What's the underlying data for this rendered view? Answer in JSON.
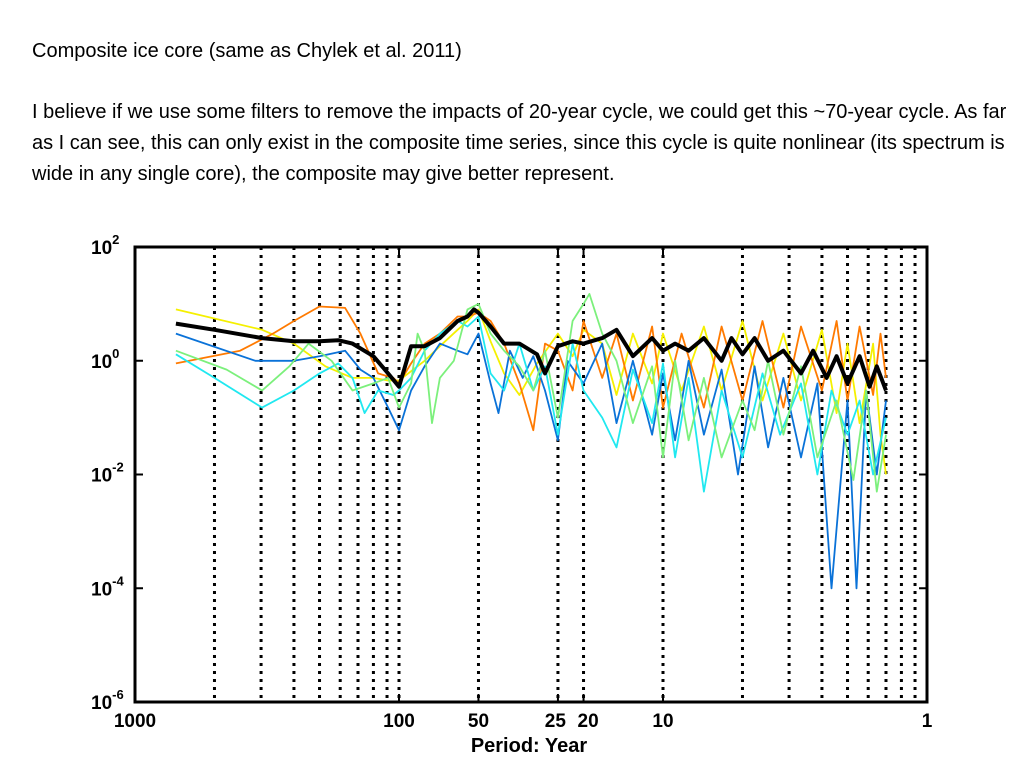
{
  "slide": {
    "heading": "Composite ice core (same as Chylek et al. 2011)",
    "body": "I believe if we use some filters to remove the impacts of 20-year cycle, we could get this ~70-year cycle. As far as I can see, this can only exist in the composite time series, since this cycle is quite nonlinear (its spectrum is wide in any single core), the composite may give better represent."
  },
  "chart_data": {
    "type": "line",
    "title": "",
    "xlabel": "Period: Year",
    "ylabel": "",
    "xscale": "log",
    "yscale": "log",
    "xlim": [
      1000,
      1
    ],
    "ylim": [
      1e-06,
      100
    ],
    "x_reversed": true,
    "x_ticks": [
      {
        "value": 1000,
        "label": "1000"
      },
      {
        "value": 100,
        "label": "100"
      },
      {
        "value": 50,
        "label": "50"
      },
      {
        "value": 25,
        "label": "25"
      },
      {
        "value": 20,
        "label": "20"
      },
      {
        "value": 10,
        "label": "10"
      },
      {
        "value": 1,
        "label": "1"
      }
    ],
    "y_ticks": [
      {
        "value": 100,
        "base": "10",
        "exp": "2"
      },
      {
        "value": 1,
        "base": "10",
        "exp": "0"
      },
      {
        "value": 0.01,
        "base": "10",
        "exp": "-2"
      },
      {
        "value": 0.0001,
        "base": "10",
        "exp": "-4"
      },
      {
        "value": 1e-06,
        "base": "10",
        "exp": "-6"
      }
    ],
    "vlines": {
      "style": "dotted",
      "color": "#000000",
      "x": [
        500,
        333,
        250,
        200,
        167,
        143,
        125,
        111,
        100,
        50,
        25,
        20,
        10,
        5,
        3.33,
        2.5,
        2,
        1.67,
        1.43,
        1.25,
        1.11
      ]
    },
    "grid": false,
    "legend": "none",
    "series": [
      {
        "color": "#f5f000",
        "points": [
          [
            700,
            8
          ],
          [
            330,
            3.5
          ],
          [
            250,
            2
          ],
          [
            190,
            0.8
          ],
          [
            150,
            0.5
          ],
          [
            125,
            0.5
          ],
          [
            110,
            0.45
          ],
          [
            100,
            0.45
          ],
          [
            80,
            1
          ],
          [
            70,
            1.8
          ],
          [
            60,
            3.5
          ],
          [
            55,
            5
          ],
          [
            50,
            8
          ],
          [
            45,
            2.2
          ],
          [
            40,
            0.6
          ],
          [
            35,
            0.25
          ],
          [
            30,
            0.9
          ],
          [
            25,
            3
          ],
          [
            22,
            1.2
          ],
          [
            20,
            3.5
          ],
          [
            17,
            2
          ],
          [
            15,
            0.25
          ],
          [
            13,
            3
          ],
          [
            11,
            0.4
          ],
          [
            10,
            3
          ],
          [
            8.5,
            0.3
          ],
          [
            7,
            4
          ],
          [
            6,
            0.3
          ],
          [
            5,
            5
          ],
          [
            4.2,
            0.2
          ],
          [
            3.5,
            3
          ],
          [
            3,
            0.2
          ],
          [
            2.5,
            3.5
          ],
          [
            2.2,
            0.12
          ],
          [
            2,
            2
          ],
          [
            1.8,
            0.08
          ],
          [
            1.6,
            2
          ],
          [
            1.5,
            0.05
          ],
          [
            1.43,
            0.01
          ]
        ]
      },
      {
        "color": "#ff7a00",
        "points": [
          [
            700,
            0.9
          ],
          [
            400,
            1.5
          ],
          [
            300,
            3
          ],
          [
            250,
            5
          ],
          [
            200,
            9
          ],
          [
            160,
            8.5
          ],
          [
            140,
            3
          ],
          [
            120,
            0.6
          ],
          [
            105,
            0.5
          ],
          [
            100,
            0.4
          ],
          [
            90,
            0.9
          ],
          [
            80,
            2
          ],
          [
            70,
            3
          ],
          [
            60,
            6
          ],
          [
            55,
            6
          ],
          [
            50,
            7
          ],
          [
            45,
            5
          ],
          [
            40,
            2
          ],
          [
            35,
            0.4
          ],
          [
            31,
            0.06
          ],
          [
            28,
            2
          ],
          [
            25,
            1.5
          ],
          [
            22,
            0.3
          ],
          [
            20,
            5
          ],
          [
            17,
            0.5
          ],
          [
            15,
            3
          ],
          [
            13,
            0.2
          ],
          [
            11,
            4
          ],
          [
            10,
            0.15
          ],
          [
            8.5,
            3
          ],
          [
            7,
            0.15
          ],
          [
            6,
            4
          ],
          [
            5,
            0.2
          ],
          [
            4.2,
            5
          ],
          [
            3.5,
            0.15
          ],
          [
            3,
            4
          ],
          [
            2.5,
            0.3
          ],
          [
            2.2,
            5
          ],
          [
            2,
            0.2
          ],
          [
            1.8,
            4
          ],
          [
            1.6,
            0.25
          ],
          [
            1.5,
            3
          ],
          [
            1.43,
            0.5
          ]
        ]
      },
      {
        "color": "#0a72d8",
        "points": [
          [
            700,
            3
          ],
          [
            350,
            1
          ],
          [
            250,
            1
          ],
          [
            200,
            1.2
          ],
          [
            160,
            1.5
          ],
          [
            140,
            0.7
          ],
          [
            125,
            0.5
          ],
          [
            110,
            0.15
          ],
          [
            100,
            0.06
          ],
          [
            90,
            0.3
          ],
          [
            80,
            0.8
          ],
          [
            70,
            2
          ],
          [
            60,
            1.5
          ],
          [
            55,
            1.3
          ],
          [
            50,
            3
          ],
          [
            45,
            0.4
          ],
          [
            42,
            0.12
          ],
          [
            38,
            1.5
          ],
          [
            34,
            0.5
          ],
          [
            31,
            1.2
          ],
          [
            28,
            0.3
          ],
          [
            25,
            0.04
          ],
          [
            23,
            1
          ],
          [
            20,
            0.4
          ],
          [
            17,
            2
          ],
          [
            15,
            0.08
          ],
          [
            13,
            1
          ],
          [
            11,
            0.05
          ],
          [
            10,
            0.6
          ],
          [
            9,
            0.04
          ],
          [
            8,
            1
          ],
          [
            7,
            0.05
          ],
          [
            6,
            0.7
          ],
          [
            5.2,
            0.01
          ],
          [
            4.5,
            0.8
          ],
          [
            4,
            0.03
          ],
          [
            3.5,
            0.5
          ],
          [
            3,
            0.02
          ],
          [
            2.6,
            0.4
          ],
          [
            2.3,
            0.0001
          ],
          [
            2,
            0.2
          ],
          [
            1.85,
            0.0001
          ],
          [
            1.7,
            0.3
          ],
          [
            1.55,
            0.01
          ],
          [
            1.43,
            0.2
          ]
        ]
      },
      {
        "color": "#20e8f0",
        "points": [
          [
            700,
            1.3
          ],
          [
            500,
            0.5
          ],
          [
            330,
            0.15
          ],
          [
            250,
            0.3
          ],
          [
            200,
            0.6
          ],
          [
            170,
            0.9
          ],
          [
            150,
            0.5
          ],
          [
            135,
            0.12
          ],
          [
            120,
            0.3
          ],
          [
            105,
            0.25
          ],
          [
            100,
            0.3
          ],
          [
            90,
            0.5
          ],
          [
            80,
            1.5
          ],
          [
            70,
            3
          ],
          [
            60,
            5
          ],
          [
            55,
            4
          ],
          [
            50,
            6
          ],
          [
            45,
            0.6
          ],
          [
            40,
            0.3
          ],
          [
            35,
            2
          ],
          [
            31,
            0.3
          ],
          [
            28,
            0.8
          ],
          [
            25,
            0.05
          ],
          [
            22,
            2
          ],
          [
            20,
            0.3
          ],
          [
            17,
            0.1
          ],
          [
            15,
            0.03
          ],
          [
            13,
            0.7
          ],
          [
            11,
            0.08
          ],
          [
            10,
            0.9
          ],
          [
            9,
            0.02
          ],
          [
            8,
            0.5
          ],
          [
            7,
            0.005
          ],
          [
            6,
            0.3
          ],
          [
            5,
            0.02
          ],
          [
            4.2,
            0.6
          ],
          [
            3.6,
            0.05
          ],
          [
            3,
            0.4
          ],
          [
            2.6,
            0.01
          ],
          [
            2.3,
            0.3
          ],
          [
            2,
            0.05
          ],
          [
            1.8,
            0.2
          ],
          [
            1.6,
            0.01
          ],
          [
            1.43,
            0.1
          ]
        ]
      },
      {
        "color": "#7cf07c",
        "points": [
          [
            700,
            1.5
          ],
          [
            450,
            0.7
          ],
          [
            330,
            0.3
          ],
          [
            260,
            0.8
          ],
          [
            220,
            2
          ],
          [
            180,
            1
          ],
          [
            150,
            0.3
          ],
          [
            125,
            0.4
          ],
          [
            110,
            0.5
          ],
          [
            100,
            0.15
          ],
          [
            90,
            0.4
          ],
          [
            85,
            3
          ],
          [
            80,
            1.5
          ],
          [
            75,
            0.08
          ],
          [
            70,
            0.5
          ],
          [
            62,
            1
          ],
          [
            55,
            8
          ],
          [
            50,
            10
          ],
          [
            45,
            3
          ],
          [
            40,
            1.5
          ],
          [
            35,
            0.8
          ],
          [
            31,
            0.3
          ],
          [
            28,
            1.5
          ],
          [
            25,
            0.1
          ],
          [
            22,
            5
          ],
          [
            20,
            10
          ],
          [
            19,
            15
          ],
          [
            17,
            3
          ],
          [
            15,
            1
          ],
          [
            13,
            0.08
          ],
          [
            11,
            0.8
          ],
          [
            10,
            0.02
          ],
          [
            9,
            1
          ],
          [
            8,
            0.04
          ],
          [
            7,
            0.5
          ],
          [
            6,
            0.02
          ],
          [
            5,
            0.2
          ],
          [
            4.5,
            0.06
          ],
          [
            4,
            1
          ],
          [
            3.5,
            0.05
          ],
          [
            3,
            0.8
          ],
          [
            2.6,
            0.02
          ],
          [
            2.2,
            0.2
          ],
          [
            1.9,
            0.008
          ],
          [
            1.7,
            0.3
          ],
          [
            1.55,
            0.005
          ],
          [
            1.43,
            0.05
          ]
        ]
      },
      {
        "color": "#000000",
        "width": 4,
        "points": [
          [
            700,
            4.5
          ],
          [
            500,
            3.5
          ],
          [
            330,
            2.5
          ],
          [
            250,
            2.2
          ],
          [
            200,
            2.2
          ],
          [
            170,
            2.3
          ],
          [
            150,
            2
          ],
          [
            125,
            1.2
          ],
          [
            110,
            0.6
          ],
          [
            100,
            0.35
          ],
          [
            90,
            1.8
          ],
          [
            80,
            1.8
          ],
          [
            70,
            2.5
          ],
          [
            60,
            5
          ],
          [
            55,
            6
          ],
          [
            52,
            8
          ],
          [
            50,
            7
          ],
          [
            45,
            4
          ],
          [
            40,
            2
          ],
          [
            35,
            2
          ],
          [
            30,
            1.3
          ],
          [
            28,
            0.6
          ],
          [
            25,
            1.8
          ],
          [
            22,
            2.2
          ],
          [
            20,
            2
          ],
          [
            17,
            2.5
          ],
          [
            15,
            3.5
          ],
          [
            13,
            1.2
          ],
          [
            11,
            2.5
          ],
          [
            10,
            1.5
          ],
          [
            9,
            2
          ],
          [
            8,
            1.5
          ],
          [
            7,
            2.5
          ],
          [
            6,
            1
          ],
          [
            5.5,
            2.5
          ],
          [
            5,
            1.3
          ],
          [
            4.5,
            2.5
          ],
          [
            4,
            1
          ],
          [
            3.5,
            1.5
          ],
          [
            3,
            0.6
          ],
          [
            2.7,
            1.5
          ],
          [
            2.4,
            0.5
          ],
          [
            2.2,
            1.2
          ],
          [
            2,
            0.4
          ],
          [
            1.8,
            1.2
          ],
          [
            1.65,
            0.35
          ],
          [
            1.55,
            0.8
          ],
          [
            1.43,
            0.3
          ]
        ]
      }
    ]
  }
}
